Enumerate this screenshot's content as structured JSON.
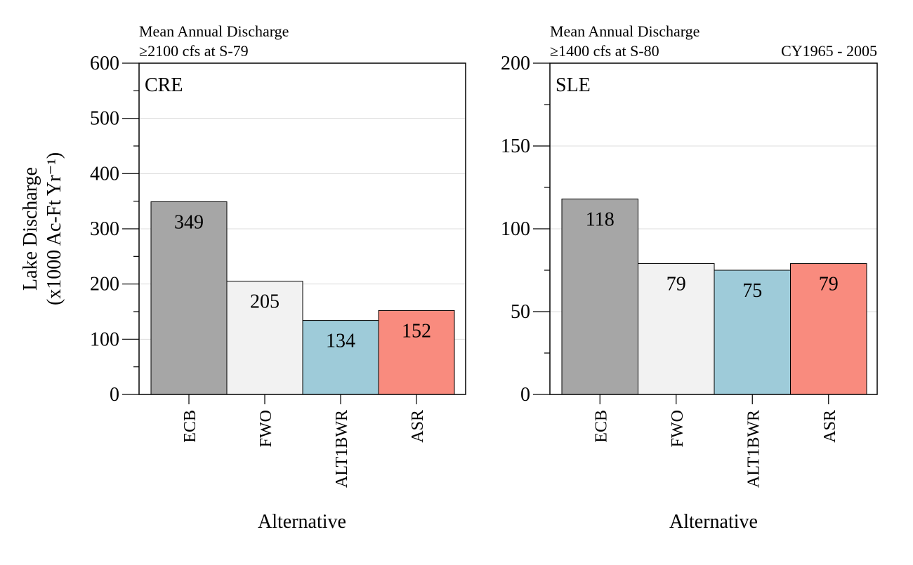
{
  "y_axis_title": [
    "Lake Discharge",
    "(x1000 Ac-Ft Yr⁻¹)"
  ],
  "chart_data": [
    {
      "type": "bar",
      "panel_label": "CRE",
      "title_lines": [
        "Mean Annual Discharge",
        "≥2100 cfs at S-79"
      ],
      "right_note": "",
      "xlabel": "Alternative",
      "categories": [
        "ECB",
        "FWO",
        "ALT1BWR",
        "ASR"
      ],
      "values": [
        349,
        205,
        134,
        152
      ],
      "colors": [
        "#a6a6a6",
        "#f2f2f2",
        "#9ecbd9",
        "#f98b7e"
      ],
      "ylim": [
        0,
        600
      ],
      "major_ticks": [
        0,
        100,
        200,
        300,
        400,
        500,
        600
      ],
      "minor_step": 50,
      "grid": true
    },
    {
      "type": "bar",
      "panel_label": "SLE",
      "title_lines": [
        "Mean Annual Discharge",
        "≥1400 cfs at S-80"
      ],
      "right_note": "CY1965 - 2005",
      "xlabel": "Alternative",
      "categories": [
        "ECB",
        "FWO",
        "ALT1BWR",
        "ASR"
      ],
      "values": [
        118,
        79,
        75,
        79
      ],
      "colors": [
        "#a6a6a6",
        "#f2f2f2",
        "#9ecbd9",
        "#f98b7e"
      ],
      "ylim": [
        0,
        200
      ],
      "major_ticks": [
        0,
        50,
        100,
        150,
        200
      ],
      "minor_step": 25,
      "grid": true
    }
  ]
}
